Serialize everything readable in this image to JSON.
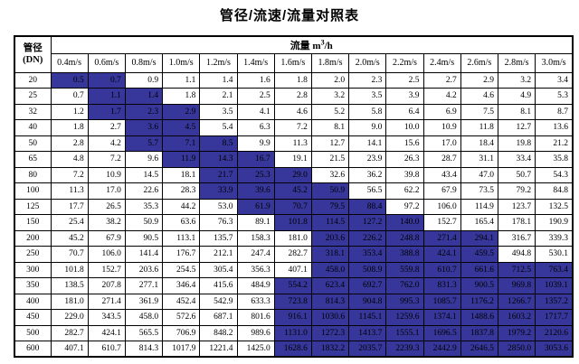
{
  "title": "管径/流速/流量对照表",
  "colors": {
    "highlight": "#37379B",
    "grid": "#000000",
    "background": "#ffffff"
  },
  "table": {
    "corner": {
      "line1": "管径",
      "line2": "(DN)"
    },
    "flow_header": {
      "prefix": "流量 m",
      "sup": "3",
      "suffix": "/h"
    },
    "velocity_headers": [
      "0.4m/s",
      "0.6m/s",
      "0.8m/s",
      "1.0m/s",
      "1.2m/s",
      "1.4m/s",
      "1.6m/s",
      "1.8m/s",
      "2.0m/s",
      "2.2m/s",
      "2.4m/s",
      "2.6m/s",
      "2.8m/s",
      "3.0m/s"
    ],
    "rows": [
      {
        "dn": "20",
        "values": [
          "0.5",
          "0.7",
          "0.9",
          "1.1",
          "1.4",
          "1.6",
          "1.8",
          "2.0",
          "2.3",
          "2.5",
          "2.7",
          "2.9",
          "3.2",
          "3.4"
        ],
        "highlight": [
          0,
          1
        ]
      },
      {
        "dn": "25",
        "values": [
          "0.7",
          "1.1",
          "1.4",
          "1.8",
          "2.1",
          "2.5",
          "2.8",
          "3.2",
          "3.5",
          "3.9",
          "4.2",
          "4.6",
          "4.9",
          "5.3"
        ],
        "highlight": [
          1,
          2
        ]
      },
      {
        "dn": "32",
        "values": [
          "1.2",
          "1.7",
          "2.3",
          "2.9",
          "3.5",
          "4.1",
          "4.6",
          "5.2",
          "5.8",
          "6.4",
          "6.9",
          "7.5",
          "8.1",
          "8.7"
        ],
        "highlight": [
          1,
          3
        ]
      },
      {
        "dn": "40",
        "values": [
          "1.8",
          "2.7",
          "3.6",
          "4.5",
          "5.4",
          "6.3",
          "7.2",
          "8.1",
          "9.0",
          "10.0",
          "10.9",
          "11.8",
          "12.7",
          "13.6"
        ],
        "highlight": [
          2,
          3
        ]
      },
      {
        "dn": "50",
        "values": [
          "2.8",
          "4.2",
          "5.7",
          "7.1",
          "8.5",
          "9.9",
          "11.3",
          "12.7",
          "14.1",
          "15.6",
          "17.0",
          "18.4",
          "19.8",
          "21.2"
        ],
        "highlight": [
          2,
          4
        ]
      },
      {
        "dn": "65",
        "values": [
          "4.8",
          "7.2",
          "9.6",
          "11.9",
          "14.3",
          "16.7",
          "19.1",
          "21.5",
          "23.9",
          "26.3",
          "28.7",
          "31.1",
          "33.4",
          "35.8"
        ],
        "highlight": [
          3,
          5
        ]
      },
      {
        "dn": "80",
        "values": [
          "7.2",
          "10.9",
          "14.5",
          "18.1",
          "21.7",
          "25.3",
          "29.0",
          "32.6",
          "36.2",
          "39.8",
          "43.4",
          "47.0",
          "50.7",
          "54.3"
        ],
        "highlight": [
          4,
          6
        ]
      },
      {
        "dn": "100",
        "values": [
          "11.3",
          "17.0",
          "22.6",
          "28.3",
          "33.9",
          "39.6",
          "45.2",
          "50.9",
          "56.5",
          "62.2",
          "67.9",
          "73.5",
          "79.2",
          "84.8"
        ],
        "highlight": [
          4,
          7
        ]
      },
      {
        "dn": "125",
        "values": [
          "17.7",
          "26.5",
          "35.3",
          "44.2",
          "53.0",
          "61.9",
          "70.7",
          "79.5",
          "88.4",
          "97.2",
          "106.0",
          "114.9",
          "123.7",
          "132.5"
        ],
        "highlight": [
          5,
          8
        ]
      },
      {
        "dn": "150",
        "values": [
          "25.4",
          "38.2",
          "50.9",
          "63.6",
          "76.3",
          "89.1",
          "101.8",
          "114.5",
          "127.2",
          "140.0",
          "152.7",
          "165.4",
          "178.1",
          "190.9"
        ],
        "highlight": [
          6,
          9
        ]
      },
      {
        "dn": "200",
        "values": [
          "45.2",
          "67.9",
          "90.5",
          "113.1",
          "135.7",
          "158.3",
          "181.0",
          "203.6",
          "226.2",
          "248.8",
          "271.4",
          "294.1",
          "316.7",
          "339.3"
        ],
        "highlight": [
          7,
          11
        ]
      },
      {
        "dn": "250",
        "values": [
          "70.7",
          "106.0",
          "141.4",
          "176.7",
          "212.1",
          "247.4",
          "282.7",
          "318.1",
          "353.4",
          "388.8",
          "424.1",
          "459.5",
          "494.8",
          "530.1"
        ],
        "highlight": [
          7,
          11
        ]
      },
      {
        "dn": "300",
        "values": [
          "101.8",
          "152.7",
          "203.6",
          "254.5",
          "305.4",
          "356.3",
          "407.1",
          "458.0",
          "508.9",
          "559.8",
          "610.7",
          "661.6",
          "712.5",
          "763.4"
        ],
        "highlight": [
          7,
          13
        ]
      },
      {
        "dn": "350",
        "values": [
          "138.5",
          "207.8",
          "277.1",
          "346.4",
          "415.6",
          "484.9",
          "554.2",
          "623.4",
          "692.7",
          "762.0",
          "831.3",
          "900.5",
          "969.8",
          "1039.1"
        ],
        "highlight": [
          6,
          13
        ]
      },
      {
        "dn": "400",
        "values": [
          "181.0",
          "271.4",
          "361.9",
          "452.4",
          "542.9",
          "633.3",
          "723.8",
          "814.3",
          "904.8",
          "995.3",
          "1085.7",
          "1176.2",
          "1266.7",
          "1357.2"
        ],
        "highlight": [
          6,
          13
        ]
      },
      {
        "dn": "450",
        "values": [
          "229.0",
          "343.5",
          "458.0",
          "572.6",
          "687.1",
          "801.6",
          "916.1",
          "1030.6",
          "1145.1",
          "1259.6",
          "1374.1",
          "1488.6",
          "1603.2",
          "1717.7"
        ],
        "highlight": [
          6,
          13
        ]
      },
      {
        "dn": "500",
        "values": [
          "282.7",
          "424.1",
          "565.5",
          "706.9",
          "848.2",
          "989.6",
          "1131.0",
          "1272.3",
          "1413.7",
          "1555.1",
          "1696.5",
          "1837.8",
          "1979.2",
          "2120.6"
        ],
        "highlight": [
          6,
          13
        ]
      },
      {
        "dn": "600",
        "values": [
          "407.1",
          "610.7",
          "814.3",
          "1017.9",
          "1221.4",
          "1425.0",
          "1628.6",
          "1832.2",
          "2035.7",
          "2239.3",
          "2442.9",
          "2646.5",
          "2850.0",
          "3053.6"
        ],
        "highlight": [
          6,
          13
        ]
      }
    ]
  }
}
